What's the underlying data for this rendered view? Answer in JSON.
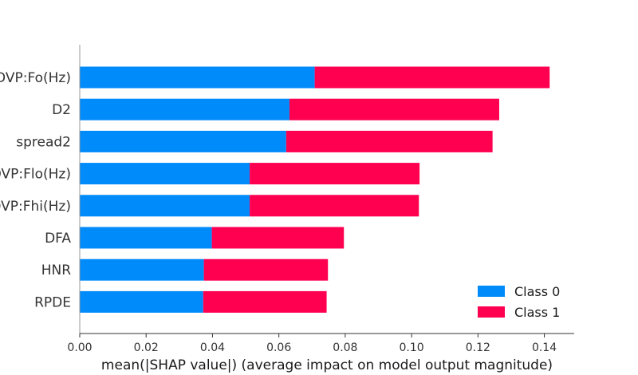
{
  "chart_data": {
    "type": "bar",
    "orientation": "horizontal",
    "stacked": true,
    "categories": [
      "MDVP:Fo(Hz)",
      "D2",
      "spread2",
      "MDVP:Flo(Hz)",
      "MDVP:Fhi(Hz)",
      "DFA",
      "HNR",
      "RPDE"
    ],
    "series": [
      {
        "name": "Class 0",
        "color": "#008bfb",
        "values": [
          0.0708,
          0.0632,
          0.0622,
          0.0512,
          0.0512,
          0.0398,
          0.0374,
          0.0372
        ]
      },
      {
        "name": "Class 1",
        "color": "#ff0051",
        "values": [
          0.0708,
          0.0632,
          0.0622,
          0.0512,
          0.051,
          0.0398,
          0.0374,
          0.0372
        ]
      }
    ],
    "xlabel": "mean(|SHAP value|) (average impact on model output magnitude)",
    "ylabel": "",
    "xlim": [
      0,
      0.149
    ],
    "xticks": [
      "0.00",
      "0.02",
      "0.04",
      "0.06",
      "0.08",
      "0.10",
      "0.12",
      "0.14"
    ],
    "grid": false,
    "legend_position": "bottom-right"
  }
}
